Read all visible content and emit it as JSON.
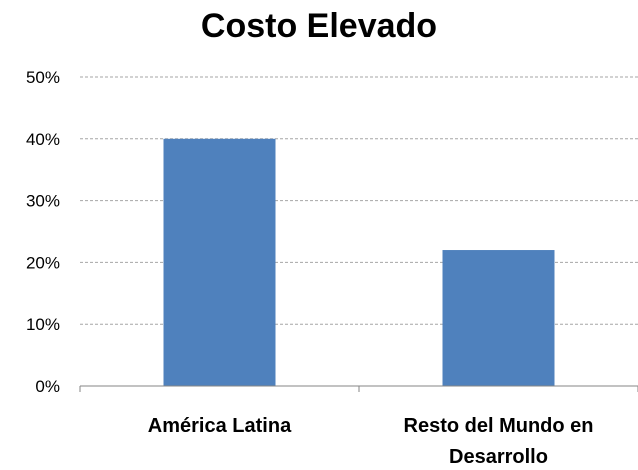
{
  "chart_data": {
    "type": "bar",
    "title": "Costo Elevado",
    "categories": [
      "América Latina",
      "Resto del Mundo en Desarrollo"
    ],
    "category_label_lines": [
      [
        "América Latina"
      ],
      [
        "Resto del Mundo en",
        "Desarrollo"
      ]
    ],
    "values": [
      40,
      22
    ],
    "ylim": [
      0,
      50
    ],
    "yticks": [
      0,
      10,
      20,
      30,
      40,
      50
    ],
    "ytick_labels": [
      "0%",
      "10%",
      "20%",
      "30%",
      "40%",
      "50%"
    ],
    "xlabel": "",
    "ylabel": "",
    "grid": true,
    "legend": "none",
    "bar_color": "#4f81bd",
    "grid_color": "#a6a6a6"
  }
}
